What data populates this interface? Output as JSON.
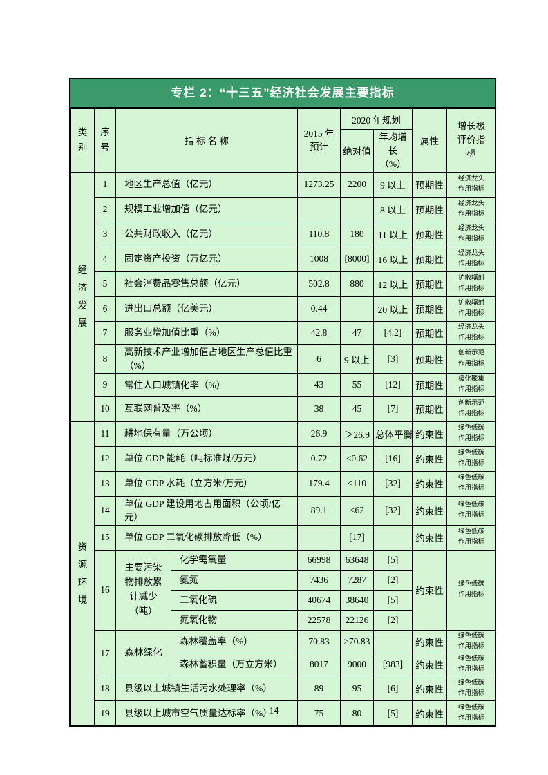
{
  "page_number": "14",
  "colors": {
    "title_bar_green": "#3a9a69",
    "cell_light_green": "#d4f6d4",
    "border_black": "#000000",
    "title_text_white": "#ffffff"
  },
  "table": {
    "title": "专栏 2：“十三五”经济社会发展主要指标",
    "headers": {
      "category": "类别",
      "no": "序号",
      "indicator": "指 标 名 称",
      "y2015_l1": "2015 年",
      "y2015_l2": "预计",
      "plan2020": "2020 年规划",
      "absolute": "绝对值",
      "growth_l1": "年均增长",
      "growth_l2": "（%）",
      "attribute": "属性",
      "evaluation": "增长极评价指标"
    },
    "sections": [
      {
        "category": "经济发展",
        "rows": [
          {
            "no": "1",
            "name": "地区生产总值（亿元）",
            "v2015": "1273.25",
            "abs": "2200",
            "growth": "9 以上",
            "attr": "预期性",
            "eval": "经济龙头作用指标"
          },
          {
            "no": "2",
            "name": "规模工业增加值（亿元）",
            "v2015": "",
            "abs": "",
            "growth": "8 以上",
            "attr": "预期性",
            "eval": "经济龙头作用指标"
          },
          {
            "no": "3",
            "name": "公共财政收入（亿元）",
            "v2015": "110.8",
            "abs": "180",
            "growth": "11 以上",
            "attr": "预期性",
            "eval": "经济龙头作用指标"
          },
          {
            "no": "4",
            "name": "固定资产投资（万亿元）",
            "v2015": "1008",
            "abs": "[8000]",
            "growth": "16 以上",
            "attr": "预期性",
            "eval": "经济龙头作用指标"
          },
          {
            "no": "5",
            "name": "社会消费品零售总额（亿元）",
            "v2015": "502.8",
            "abs": "880",
            "growth": "12 以上",
            "attr": "预期性",
            "eval": "扩散辐射作用指标"
          },
          {
            "no": "6",
            "name": "进出口总额（亿美元）",
            "v2015": "0.44",
            "abs": "",
            "growth": "20 以上",
            "attr": "预期性",
            "eval": "扩散辐射作用指标"
          },
          {
            "no": "7",
            "name": "服务业增加值比重（%）",
            "v2015": "42.8",
            "abs": "47",
            "growth": "[4.2]",
            "attr": "预期性",
            "eval": "经济龙头作用指标",
            "size": "short"
          },
          {
            "no": "8",
            "name": "高新技术产业增加值占地区生产总值比重（%）",
            "v2015": "6",
            "abs": "9 以上",
            "growth": "[3]",
            "attr": "预期性",
            "eval": "创新示范作用指标",
            "size": "tall"
          },
          {
            "no": "9",
            "name": "常住人口城镇化率（%）",
            "v2015": "43",
            "abs": "55",
            "growth": "[12]",
            "attr": "预期性",
            "eval": "极化聚集作用指标",
            "size": "short"
          },
          {
            "no": "10",
            "name": "互联网普及率（%）",
            "v2015": "38",
            "abs": "45",
            "growth": "[7]",
            "attr": "预期性",
            "eval": "创新示范作用指标"
          }
        ]
      },
      {
        "category": "资源环境",
        "rows": [
          {
            "no": "11",
            "name": "耕地保有量（万公顷）",
            "v2015": "26.9",
            "abs": "＞26.9",
            "growth": "总体平衡",
            "attr": "约束性",
            "eval": "绿色低碳作用指标"
          },
          {
            "no": "12",
            "name": "单位 GDP 能耗（吨标准煤/万元）",
            "v2015": "0.72",
            "abs": "≤0.62",
            "growth": "[16]",
            "attr": "约束性",
            "eval": "绿色低碳作用指标"
          },
          {
            "no": "13",
            "name": "单位 GDP 水耗（立方米/万元）",
            "v2015": "179.4",
            "abs": "≤110",
            "growth": "[32]",
            "attr": "约束性",
            "eval": "绿色低碳作用指标"
          },
          {
            "no": "14",
            "name": "单位 GDP 建设用地占用面积（公顷/亿元）",
            "v2015": "89.1",
            "abs": "≤62",
            "growth": "[32]",
            "attr": "约束性",
            "eval": "绿色低碳作用指标"
          },
          {
            "no": "15",
            "name": "单位 GDP 二氧化碳排放降低（%）",
            "v2015": "",
            "abs": "[17]",
            "growth": "",
            "attr": "约束性",
            "eval": "绿色低碳作用指标"
          },
          {
            "no": "16",
            "group": "主要污染物排放累计减少（吨）",
            "merged": true,
            "attr": "约束性",
            "eval": "绿色低碳作用指标",
            "subs": [
              {
                "name": "化学需氧量",
                "v2015": "66998",
                "abs": "63648",
                "growth": "[5]"
              },
              {
                "name": "氨氮",
                "v2015": "7436",
                "abs": "7287",
                "growth": "[2]"
              },
              {
                "name": "二氧化硫",
                "v2015": "40674",
                "abs": "38640",
                "growth": "[5]"
              },
              {
                "name": "氮氧化物",
                "v2015": "22578",
                "abs": "22126",
                "growth": "[2]"
              }
            ]
          },
          {
            "no": "17",
            "group": "森林绿化",
            "merged": false,
            "subs": [
              {
                "name": "森林覆盖率（%）",
                "v2015": "70.83",
                "abs": "≥70.83",
                "growth": "",
                "attr": "约束性",
                "eval": "绿色低碳作用指标"
              },
              {
                "name": "森林蓄积量（万立方米）",
                "v2015": "8017",
                "abs": "9000",
                "growth": "[983]",
                "attr": "约束性",
                "eval": "绿色低碳作用指标"
              }
            ]
          },
          {
            "no": "18",
            "name": "县级以上城镇生活污水处理率（%）",
            "v2015": "89",
            "abs": "95",
            "growth": "[6]",
            "attr": "约束性",
            "eval": "绿色低碳作用指标"
          },
          {
            "no": "19",
            "name": "县级以上城市空气质量达标率（%）",
            "v2015": "75",
            "abs": "80",
            "growth": "[5]",
            "attr": "约束性",
            "eval": "绿色低碳作用指标"
          }
        ]
      }
    ]
  }
}
